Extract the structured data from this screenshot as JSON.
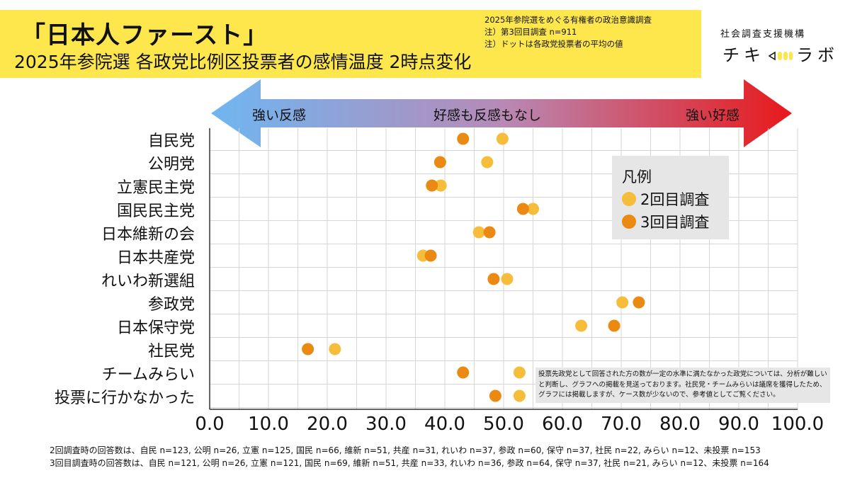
{
  "title": {
    "main": "「日本人ファースト」",
    "sub": "2025年参院選 各政党比例区投票者の感情温度 2時点変化"
  },
  "notes": [
    "2025年参院選をめぐる有権者の政治意識調査",
    "注）第3回目調査 n=911",
    "注）ドットは各政党投票者の平均の値"
  ],
  "brand": {
    "org": "社会調査支援機構",
    "logo_left": "チキ",
    "logo_right": "ラボ"
  },
  "arrow": {
    "left": "強い反感",
    "center": "好感も反感もなし",
    "right": "強い好感"
  },
  "legend": {
    "title": "凡例",
    "items": [
      "2回目調査",
      "3回目調査"
    ]
  },
  "note_box": "投票先政党として回答された方の数が一定の水準に満たなかった政党については、分析が難しいと判断し、グラフへの掲載を見送っております。社民党・チームみらいは議席を獲得したため、グラフには掲載しますが、ケース数が少ないので、参考値としてご覧ください。",
  "footer": {
    "line1": "2回調査時の回答数は、自民 n=123, 公明 n=26, 立憲 n=125, 国民 n=66, 維新 n=51, 共産 n=31, れいわ n=37, 参政 n=60, 保守 n=37, 社民 n=22, みらい n=12、未投票 n=153",
    "line2": "3回目調査時の回答数は、自民 n=121, 公明 n=26, 立憲 n=121, 国民 n=69, 維新 n=51, 共産 n=33, れいわ n=36, 参政 n=64, 保守 n=37, 社民 n=21, みらい n=12、未投票 n=164"
  },
  "colors": {
    "title_bg": "#fde74c",
    "series2": "#f5bd3a",
    "series3": "#ea8a12",
    "arrow_left": "#6fb6f2",
    "arrow_right": "#e8191b"
  },
  "chart_data": {
    "type": "scatter",
    "categories": [
      "自民党",
      "公明党",
      "立憲民主党",
      "国民民主党",
      "日本維新の会",
      "日本共産党",
      "れいわ新選組",
      "参政党",
      "日本保守党",
      "社民党",
      "チームみらい",
      "投票に行かなかった"
    ],
    "series": [
      {
        "name": "2回目調査",
        "values": [
          49.8,
          47.2,
          39.3,
          55.0,
          45.8,
          36.3,
          50.6,
          70.2,
          63.2,
          21.3,
          52.7,
          52.7
        ]
      },
      {
        "name": "3回目調査",
        "values": [
          43.1,
          39.2,
          37.8,
          53.3,
          47.6,
          37.6,
          48.3,
          73.0,
          68.8,
          16.7,
          43.1,
          48.6
        ]
      }
    ],
    "xlim": [
      0,
      100
    ],
    "xticks": [
      "0.0",
      "10.0",
      "20.0",
      "30.0",
      "40.0",
      "50.0",
      "60.0",
      "70.0",
      "80.0",
      "90.0",
      "100.0"
    ],
    "grid": true,
    "legend": "right"
  }
}
